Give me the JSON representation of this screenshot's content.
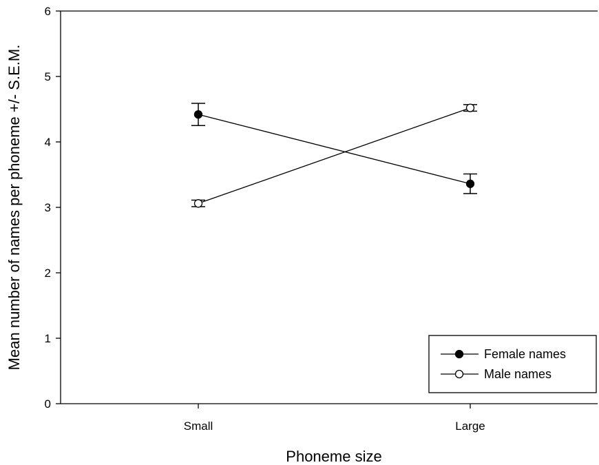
{
  "chart_data": {
    "type": "line",
    "categories": [
      "Small",
      "Large"
    ],
    "xlabel": "Phoneme size",
    "ylabel": "Mean number of names per phoneme +/- S.E.M.",
    "ylim": [
      0,
      6
    ],
    "yticks": [
      "0",
      "1",
      "2",
      "3",
      "4",
      "5",
      "6"
    ],
    "grid": false,
    "legend_position": "bottom-right",
    "series": [
      {
        "name": "Female names",
        "marker": "filled-circle",
        "values": [
          4.42,
          3.36
        ],
        "errors": [
          0.17,
          0.15
        ]
      },
      {
        "name": "Male names",
        "marker": "open-circle",
        "values": [
          3.06,
          4.52
        ],
        "errors": [
          0.05,
          0.05
        ]
      }
    ]
  }
}
